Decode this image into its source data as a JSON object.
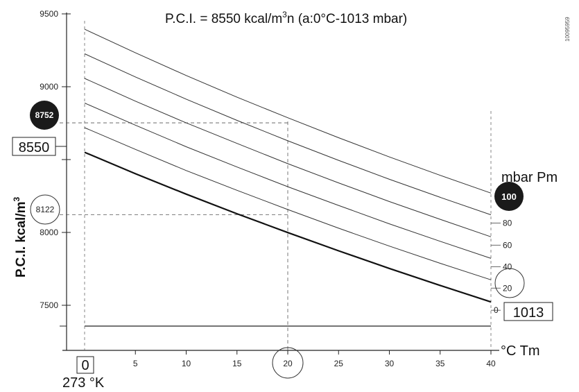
{
  "chart_data": {
    "type": "line",
    "title_main": "P.C.I. = 8550 kcal/m",
    "title_sup": "3",
    "title_rest": "n  (a:0°C-1013 mbar)",
    "ylabel_main": "P.C.I. kcal/m",
    "ylabel_sup": "3",
    "xlabel": "°C  Tm",
    "x_origin_label": "0",
    "x_kelvin_label": "273 °K",
    "series_title": "mbar  Pm",
    "side_code": "10095959",
    "xlim": [
      0,
      40
    ],
    "ylim": [
      7350,
      9550
    ],
    "x_ticks": [
      5,
      10,
      15,
      20,
      25,
      30,
      35,
      40
    ],
    "y_ticks": [
      7500,
      8000,
      8500,
      9000,
      9500
    ],
    "y_tick_labels": [
      "7500",
      "8000",
      "",
      "9000",
      "9500"
    ],
    "x": [
      0,
      5,
      10,
      15,
      20,
      25,
      30,
      35,
      40
    ],
    "series": [
      {
        "name": "0",
        "values": [
          8550,
          8403,
          8263,
          8128,
          7999,
          7874,
          7753,
          7636,
          7523
        ]
      },
      {
        "name": "20",
        "values": [
          8719,
          8570,
          8425,
          8289,
          8157,
          8029,
          7906,
          7788,
          7675
        ]
      },
      {
        "name": "40",
        "values": [
          8888,
          8736,
          8588,
          8449,
          8314,
          8185,
          8059,
          7939,
          7822
        ]
      },
      {
        "name": "60",
        "values": [
          9057,
          8901,
          8752,
          8611,
          8472,
          8340,
          8212,
          8090,
          7970
        ]
      },
      {
        "name": "80",
        "values": [
          9226,
          9067,
          8915,
          8769,
          8629,
          8495,
          8365,
          8241,
          8121
        ]
      },
      {
        "name": "100",
        "values": [
          9395,
          9233,
          9077,
          8928,
          8787,
          8650,
          8518,
          8392,
          8270
        ]
      }
    ],
    "highlight_x": 20,
    "reference_lines": [
      {
        "label": "8752",
        "y": 8752,
        "to_x": 20
      },
      {
        "label": "8122",
        "y": 8122,
        "to_x": 20
      }
    ],
    "highlight_y": 8550,
    "end_label_1013": "1013",
    "end_label_100": "100"
  }
}
